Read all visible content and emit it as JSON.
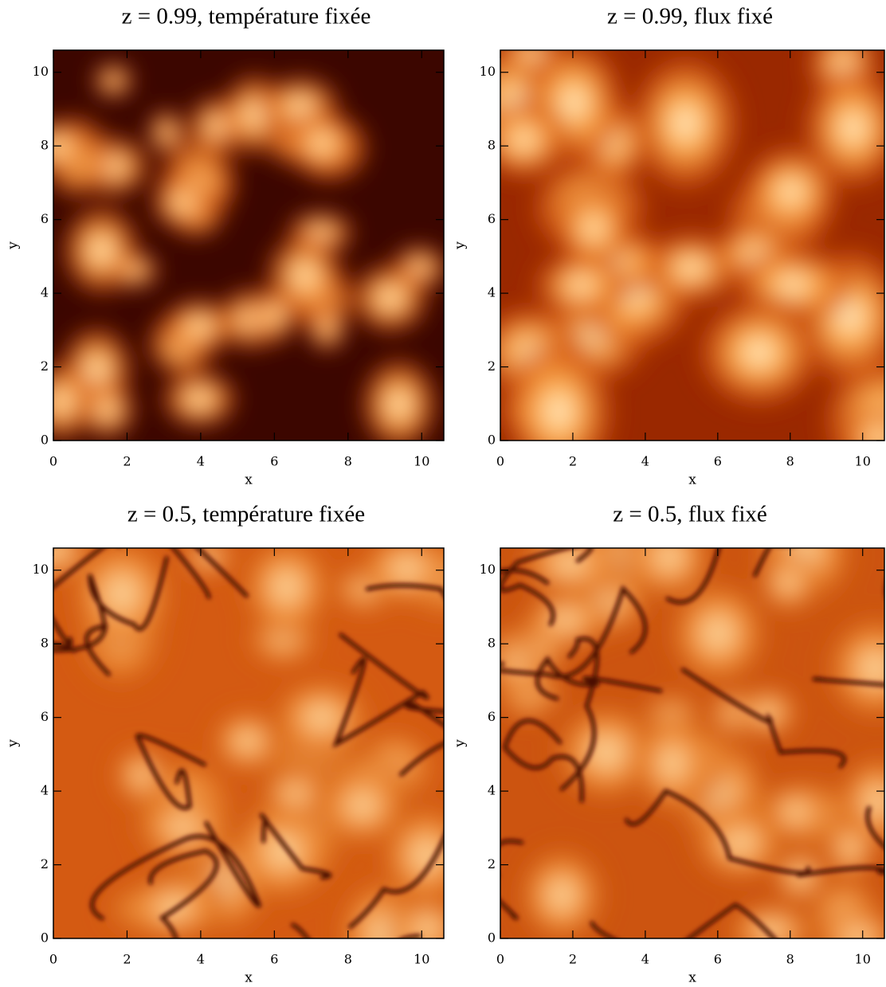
{
  "chart_data": [
    {
      "type": "heatmap",
      "title": "z = 0.99, température fixée",
      "xlabel": "x",
      "ylabel": "y",
      "xlim": [
        0,
        10.6
      ],
      "ylim": [
        0,
        10.6
      ],
      "xticks": [
        0,
        2,
        4,
        6,
        8,
        10
      ],
      "yticks": [
        0,
        2,
        4,
        6,
        8,
        10
      ]
    },
    {
      "type": "heatmap",
      "title": "z = 0.99, flux fixé",
      "xlabel": "x",
      "ylabel": "y",
      "xlim": [
        0,
        10.6
      ],
      "ylim": [
        0,
        10.6
      ],
      "xticks": [
        0,
        2,
        4,
        6,
        8,
        10
      ],
      "yticks": [
        0,
        2,
        4,
        6,
        8,
        10
      ]
    },
    {
      "type": "heatmap",
      "title": "z = 0.5, température fixée",
      "xlabel": "x",
      "ylabel": "y",
      "xlim": [
        0,
        10.6
      ],
      "ylim": [
        0,
        10.6
      ],
      "xticks": [
        0,
        2,
        4,
        6,
        8,
        10
      ],
      "yticks": [
        0,
        2,
        4,
        6,
        8,
        10
      ]
    },
    {
      "type": "heatmap",
      "title": "z = 0.5, flux fixé",
      "xlabel": "x",
      "ylabel": "y",
      "xlim": [
        0,
        10.6
      ],
      "ylim": [
        0,
        10.6
      ],
      "xticks": [
        0,
        2,
        4,
        6,
        8,
        10
      ],
      "yticks": [
        0,
        2,
        4,
        6,
        8,
        10
      ]
    }
  ]
}
